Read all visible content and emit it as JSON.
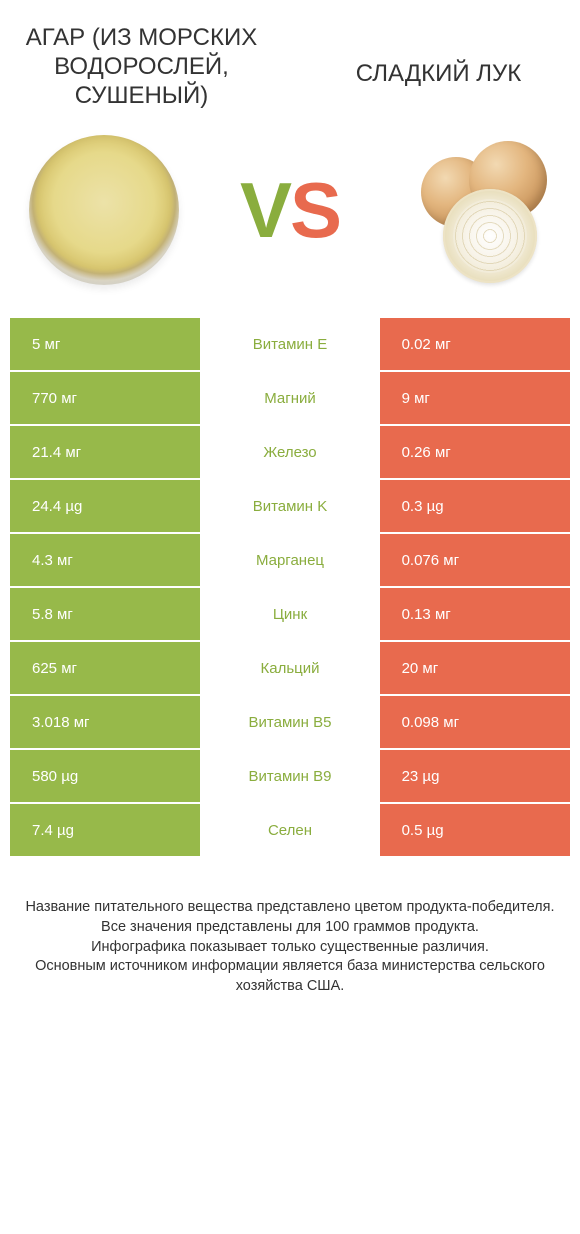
{
  "header": {
    "left_title": "АГАР (ИЗ МОРСКИХ ВОДОРОСЛЕЙ, СУШЕНЫЙ)",
    "right_title": "СЛАДКИЙ ЛУК",
    "vs_v": "V",
    "vs_s": "S"
  },
  "colors": {
    "left_bg": "#97b94a",
    "right_bg": "#e86a4e",
    "mid_text_left_win": "#8aad3e",
    "mid_text_right_win": "#e86a4e",
    "row_gap_bg": "#ffffff"
  },
  "comparison": {
    "type": "table",
    "columns": [
      "left_value",
      "nutrient",
      "right_value"
    ],
    "rows": [
      {
        "left": "5 мг",
        "mid": "Витамин E",
        "right": "0.02 мг",
        "winner": "left"
      },
      {
        "left": "770 мг",
        "mid": "Магний",
        "right": "9 мг",
        "winner": "left"
      },
      {
        "left": "21.4 мг",
        "mid": "Железо",
        "right": "0.26 мг",
        "winner": "left"
      },
      {
        "left": "24.4 µg",
        "mid": "Витамин K",
        "right": "0.3 µg",
        "winner": "left"
      },
      {
        "left": "4.3 мг",
        "mid": "Марганец",
        "right": "0.076 мг",
        "winner": "left"
      },
      {
        "left": "5.8 мг",
        "mid": "Цинк",
        "right": "0.13 мг",
        "winner": "left"
      },
      {
        "left": "625 мг",
        "mid": "Кальций",
        "right": "20 мг",
        "winner": "left"
      },
      {
        "left": "3.018 мг",
        "mid": "Витамин B5",
        "right": "0.098 мг",
        "winner": "left"
      },
      {
        "left": "580 µg",
        "mid": "Витамин B9",
        "right": "23 µg",
        "winner": "left"
      },
      {
        "left": "7.4 µg",
        "mid": "Селен",
        "right": "0.5 µg",
        "winner": "left"
      }
    ]
  },
  "footer": {
    "line1": "Название питательного вещества представлено цветом продукта-победителя.",
    "line2": "Все значения представлены для 100 граммов продукта.",
    "line3": "Инфографика показывает только существенные различия.",
    "line4": "Основным источником информации является база министерства сельского хозяйства США."
  }
}
